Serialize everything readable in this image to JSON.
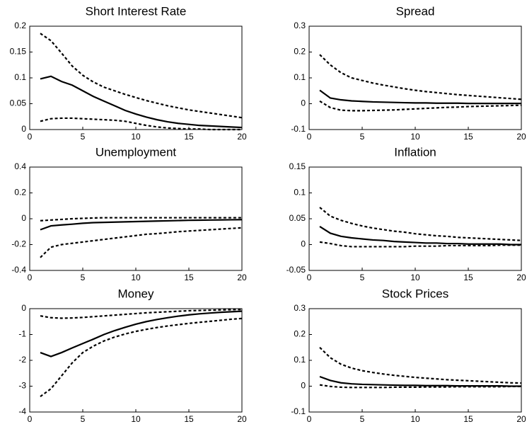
{
  "chart_data": [
    {
      "type": "line",
      "title": "Short Interest Rate",
      "x": [
        1,
        2,
        3,
        4,
        5,
        6,
        7,
        8,
        9,
        10,
        11,
        12,
        13,
        14,
        15,
        16,
        17,
        18,
        19,
        20
      ],
      "xlim": [
        0,
        20
      ],
      "xticks": [
        0,
        5,
        10,
        15,
        20
      ],
      "ylim": [
        0,
        0.2
      ],
      "yticks": [
        0,
        0.05,
        0.1,
        0.15,
        0.2
      ],
      "series": [
        {
          "color": "#000000",
          "dash": "solid",
          "values": [
            0.098,
            0.103,
            0.093,
            0.086,
            0.075,
            0.064,
            0.055,
            0.046,
            0.037,
            0.03,
            0.024,
            0.019,
            0.015,
            0.012,
            0.01,
            0.008,
            0.007,
            0.006,
            0.005,
            0.004
          ]
        },
        {
          "color": "#000000",
          "dash": "dashed",
          "values": [
            0.186,
            0.172,
            0.148,
            0.123,
            0.105,
            0.092,
            0.082,
            0.075,
            0.068,
            0.062,
            0.056,
            0.051,
            0.046,
            0.042,
            0.038,
            0.035,
            0.032,
            0.029,
            0.026,
            0.023
          ]
        },
        {
          "color": "#000000",
          "dash": "dashed",
          "values": [
            0.016,
            0.021,
            0.022,
            0.022,
            0.021,
            0.02,
            0.019,
            0.018,
            0.016,
            0.012,
            0.008,
            0.005,
            0.003,
            0.002,
            0.001,
            0.001,
            0.0,
            0.0,
            0.0,
            0.0
          ]
        }
      ]
    },
    {
      "type": "line",
      "title": "Spread",
      "x": [
        1,
        2,
        3,
        4,
        5,
        6,
        7,
        8,
        9,
        10,
        11,
        12,
        13,
        14,
        15,
        16,
        17,
        18,
        19,
        20
      ],
      "xlim": [
        0,
        20
      ],
      "xticks": [
        0,
        5,
        10,
        15,
        20
      ],
      "ylim": [
        -0.1,
        0.3
      ],
      "yticks": [
        -0.1,
        0,
        0.1,
        0.2,
        0.3
      ],
      "series": [
        {
          "color": "#000000",
          "dash": "solid",
          "values": [
            0.052,
            0.022,
            0.015,
            0.011,
            0.009,
            0.007,
            0.006,
            0.005,
            0.004,
            0.003,
            0.003,
            0.002,
            0.002,
            0.002,
            0.001,
            0.001,
            0.001,
            0.001,
            0.001,
            0.001
          ]
        },
        {
          "color": "#000000",
          "dash": "dashed",
          "values": [
            0.19,
            0.15,
            0.12,
            0.1,
            0.09,
            0.08,
            0.072,
            0.065,
            0.058,
            0.052,
            0.047,
            0.043,
            0.039,
            0.035,
            0.032,
            0.029,
            0.026,
            0.023,
            0.02,
            0.017
          ]
        },
        {
          "color": "#000000",
          "dash": "dashed",
          "values": [
            0.01,
            -0.015,
            -0.025,
            -0.027,
            -0.027,
            -0.026,
            -0.025,
            -0.024,
            -0.022,
            -0.02,
            -0.018,
            -0.016,
            -0.014,
            -0.013,
            -0.011,
            -0.01,
            -0.009,
            -0.008,
            -0.007,
            -0.006
          ]
        }
      ]
    },
    {
      "type": "line",
      "title": "Unemployment",
      "x": [
        1,
        2,
        3,
        4,
        5,
        6,
        7,
        8,
        9,
        10,
        11,
        12,
        13,
        14,
        15,
        16,
        17,
        18,
        19,
        20
      ],
      "xlim": [
        0,
        20
      ],
      "xticks": [
        0,
        5,
        10,
        15,
        20
      ],
      "ylim": [
        -0.4,
        0.4
      ],
      "yticks": [
        -0.4,
        -0.2,
        0,
        0.2,
        0.4
      ],
      "series": [
        {
          "color": "#000000",
          "dash": "solid",
          "values": [
            -0.085,
            -0.055,
            -0.048,
            -0.042,
            -0.035,
            -0.03,
            -0.028,
            -0.026,
            -0.024,
            -0.022,
            -0.02,
            -0.018,
            -0.016,
            -0.014,
            -0.012,
            -0.011,
            -0.01,
            -0.009,
            -0.008,
            -0.007
          ]
        },
        {
          "color": "#000000",
          "dash": "dashed",
          "values": [
            -0.015,
            -0.01,
            -0.005,
            0,
            0.003,
            0.006,
            0.008,
            0.008,
            0.008,
            0.008,
            0.008,
            0.008,
            0.008,
            0.008,
            0.008,
            0.008,
            0.008,
            0.008,
            0.008,
            0.008
          ]
        },
        {
          "color": "#000000",
          "dash": "dashed",
          "values": [
            -0.3,
            -0.22,
            -0.2,
            -0.19,
            -0.18,
            -0.17,
            -0.16,
            -0.15,
            -0.14,
            -0.13,
            -0.12,
            -0.115,
            -0.108,
            -0.1,
            -0.095,
            -0.09,
            -0.085,
            -0.08,
            -0.075,
            -0.07
          ]
        }
      ]
    },
    {
      "type": "line",
      "title": "Inflation",
      "x": [
        1,
        2,
        3,
        4,
        5,
        6,
        7,
        8,
        9,
        10,
        11,
        12,
        13,
        14,
        15,
        16,
        17,
        18,
        19,
        20
      ],
      "xlim": [
        0,
        20
      ],
      "xticks": [
        0,
        5,
        10,
        15,
        20
      ],
      "ylim": [
        -0.05,
        0.15
      ],
      "yticks": [
        -0.05,
        0,
        0.05,
        0.1,
        0.15
      ],
      "series": [
        {
          "color": "#000000",
          "dash": "solid",
          "values": [
            0.035,
            0.022,
            0.016,
            0.013,
            0.011,
            0.009,
            0.008,
            0.006,
            0.005,
            0.004,
            0.003,
            0.003,
            0.002,
            0.002,
            0.001,
            0.001,
            0.001,
            0.001,
            0.0,
            0.0
          ]
        },
        {
          "color": "#000000",
          "dash": "dashed",
          "values": [
            0.072,
            0.055,
            0.047,
            0.041,
            0.036,
            0.032,
            0.029,
            0.026,
            0.024,
            0.021,
            0.019,
            0.017,
            0.016,
            0.014,
            0.013,
            0.012,
            0.011,
            0.01,
            0.009,
            0.008
          ]
        },
        {
          "color": "#000000",
          "dash": "dashed",
          "values": [
            0.005,
            0.002,
            -0.002,
            -0.004,
            -0.004,
            -0.004,
            -0.004,
            -0.004,
            -0.004,
            -0.003,
            -0.003,
            -0.003,
            -0.002,
            -0.002,
            -0.002,
            -0.002,
            -0.002,
            -0.001,
            -0.001,
            -0.001
          ]
        }
      ]
    },
    {
      "type": "line",
      "title": "Money",
      "x": [
        1,
        2,
        3,
        4,
        5,
        6,
        7,
        8,
        9,
        10,
        11,
        12,
        13,
        14,
        15,
        16,
        17,
        18,
        19,
        20
      ],
      "xlim": [
        0,
        20
      ],
      "xticks": [
        0,
        5,
        10,
        15,
        20
      ],
      "ylim": [
        -4,
        0
      ],
      "yticks": [
        -4,
        -3,
        -2,
        -1,
        0
      ],
      "series": [
        {
          "color": "#000000",
          "dash": "solid",
          "values": [
            -1.7,
            -1.85,
            -1.7,
            -1.52,
            -1.35,
            -1.18,
            -1.0,
            -0.85,
            -0.72,
            -0.6,
            -0.5,
            -0.42,
            -0.35,
            -0.29,
            -0.24,
            -0.2,
            -0.17,
            -0.14,
            -0.12,
            -0.1
          ]
        },
        {
          "color": "#000000",
          "dash": "dashed",
          "values": [
            -0.28,
            -0.35,
            -0.37,
            -0.36,
            -0.34,
            -0.31,
            -0.28,
            -0.25,
            -0.22,
            -0.19,
            -0.16,
            -0.14,
            -0.12,
            -0.1,
            -0.08,
            -0.07,
            -0.06,
            -0.05,
            -0.04,
            -0.03
          ]
        },
        {
          "color": "#000000",
          "dash": "dashed",
          "values": [
            -3.4,
            -3.1,
            -2.6,
            -2.1,
            -1.7,
            -1.45,
            -1.25,
            -1.1,
            -0.98,
            -0.88,
            -0.8,
            -0.73,
            -0.67,
            -0.62,
            -0.57,
            -0.53,
            -0.49,
            -0.45,
            -0.41,
            -0.38
          ]
        }
      ]
    },
    {
      "type": "line",
      "title": "Stock Prices",
      "x": [
        1,
        2,
        3,
        4,
        5,
        6,
        7,
        8,
        9,
        10,
        11,
        12,
        13,
        14,
        15,
        16,
        17,
        18,
        19,
        20
      ],
      "xlim": [
        0,
        20
      ],
      "xticks": [
        0,
        5,
        10,
        15,
        20
      ],
      "ylim": [
        -0.1,
        0.3
      ],
      "yticks": [
        -0.1,
        0,
        0.1,
        0.2,
        0.3
      ],
      "series": [
        {
          "color": "#000000",
          "dash": "solid",
          "values": [
            0.037,
            0.022,
            0.013,
            0.009,
            0.007,
            0.006,
            0.005,
            0.004,
            0.003,
            0.003,
            0.002,
            0.002,
            0.002,
            0.001,
            0.001,
            0.001,
            0.001,
            0.001,
            0.0,
            0.0
          ]
        },
        {
          "color": "#000000",
          "dash": "dashed",
          "values": [
            0.15,
            0.11,
            0.085,
            0.07,
            0.06,
            0.053,
            0.047,
            0.042,
            0.038,
            0.034,
            0.031,
            0.028,
            0.025,
            0.023,
            0.021,
            0.019,
            0.017,
            0.015,
            0.013,
            0.012
          ]
        },
        {
          "color": "#000000",
          "dash": "dashed",
          "values": [
            0.005,
            -0.001,
            -0.004,
            -0.005,
            -0.005,
            -0.005,
            -0.005,
            -0.004,
            -0.004,
            -0.004,
            -0.003,
            -0.003,
            -0.003,
            -0.002,
            -0.002,
            -0.002,
            -0.002,
            -0.002,
            -0.001,
            -0.001
          ]
        }
      ]
    }
  ]
}
